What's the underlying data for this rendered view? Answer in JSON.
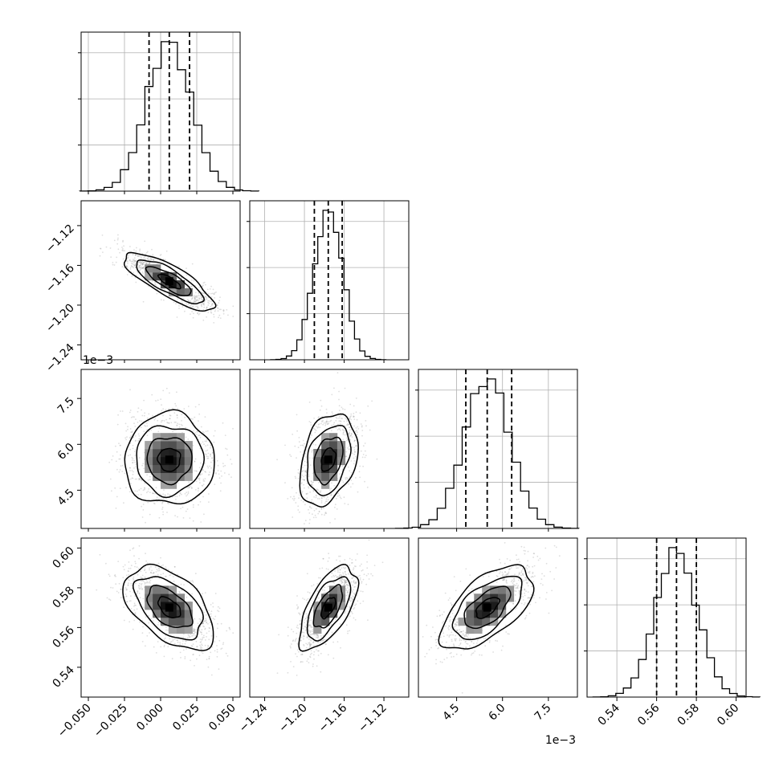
{
  "chart_data": {
    "type": "corner",
    "title": "",
    "variables": [
      {
        "range": [
          -0.055,
          0.055
        ],
        "ticks": [
          -0.05,
          -0.025,
          0.0,
          0.025,
          0.05
        ],
        "tick_labels": [
          "−0.050",
          "−0.025",
          "0.000",
          "0.025",
          "0.050"
        ],
        "median": 0.006,
        "q16": -0.008,
        "q84": 0.02,
        "sd": 0.0155,
        "multiplier": ""
      },
      {
        "range": [
          -1.255,
          -1.095
        ],
        "ticks": [
          -1.24,
          -1.2,
          -1.16,
          -1.12
        ],
        "tick_labels": [
          "−1.24",
          "−1.20",
          "−1.16",
          "−1.12"
        ],
        "median": -1.176,
        "q16": -1.19,
        "q84": -1.162,
        "sd": 0.0145,
        "multiplier": "1e−3"
      },
      {
        "range": [
          3.25,
          8.45
        ],
        "ticks": [
          4.5,
          6.0,
          7.5
        ],
        "tick_labels": [
          "4.5",
          "6.0",
          "7.5"
        ],
        "median": 5.5,
        "q16": 4.8,
        "q84": 6.3,
        "sd": 0.75,
        "multiplier": "1e−3"
      },
      {
        "range": [
          0.525,
          0.605
        ],
        "ticks": [
          0.54,
          0.56,
          0.58,
          0.6
        ],
        "tick_labels": [
          "0.54",
          "0.56",
          "0.58",
          "0.60"
        ],
        "median": 0.57,
        "q16": 0.56,
        "q84": 0.58,
        "sd": 0.0105,
        "multiplier": ""
      }
    ],
    "correlations": [
      {
        "i": 1,
        "j": 0,
        "rho": -0.8
      },
      {
        "i": 2,
        "j": 0,
        "rho": 0.0
      },
      {
        "i": 2,
        "j": 1,
        "rho": 0.32
      },
      {
        "i": 3,
        "j": 0,
        "rho": -0.5
      },
      {
        "i": 3,
        "j": 1,
        "rho": 0.62
      },
      {
        "i": 3,
        "j": 2,
        "rho": 0.6
      }
    ],
    "quantile_lines": [
      0.16,
      0.5,
      0.84
    ],
    "grid": true,
    "legend": "none"
  }
}
